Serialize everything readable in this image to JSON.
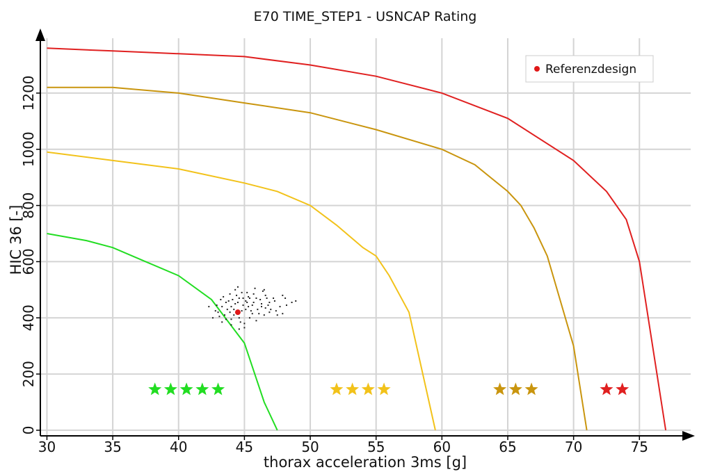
{
  "chart_data": {
    "type": "line",
    "title": "E70 TIME_STEP1 - USNCAP Rating",
    "xlabel": "thorax acceleration 3ms [g]",
    "ylabel": "HIC 36 [-]",
    "xlim": [
      29.5,
      79
    ],
    "ylim": [
      -20,
      1420
    ],
    "xticks": [
      30,
      35,
      40,
      45,
      50,
      55,
      60,
      65,
      70,
      75
    ],
    "yticks": [
      0,
      200,
      400,
      600,
      800,
      1000,
      1200
    ],
    "grid": true,
    "legend_position": "top-right",
    "series": [
      {
        "color": "#22dd22",
        "points": [
          [
            30,
            700
          ],
          [
            33,
            675
          ],
          [
            35,
            650
          ],
          [
            37.5,
            600
          ],
          [
            40,
            550
          ],
          [
            42.5,
            465
          ],
          [
            45,
            310
          ],
          [
            46.5,
            100
          ],
          [
            47.5,
            0
          ]
        ]
      },
      {
        "color": "#f2c21a",
        "points": [
          [
            30,
            990
          ],
          [
            35,
            960
          ],
          [
            40,
            930
          ],
          [
            45,
            880
          ],
          [
            47.5,
            850
          ],
          [
            50,
            800
          ],
          [
            52,
            730
          ],
          [
            54,
            650
          ],
          [
            55,
            620
          ],
          [
            56,
            550
          ],
          [
            57.5,
            420
          ],
          [
            59.5,
            0
          ]
        ]
      },
      {
        "color": "#c9950e",
        "points": [
          [
            30,
            1220
          ],
          [
            35,
            1220
          ],
          [
            40,
            1200
          ],
          [
            45,
            1165
          ],
          [
            50,
            1130
          ],
          [
            55,
            1070
          ],
          [
            60,
            1000
          ],
          [
            62.5,
            945
          ],
          [
            65,
            850
          ],
          [
            66,
            800
          ],
          [
            67,
            720
          ],
          [
            68,
            620
          ],
          [
            70,
            300
          ],
          [
            71,
            0
          ]
        ]
      },
      {
        "color": "#e02020",
        "points": [
          [
            30,
            1360
          ],
          [
            35,
            1350
          ],
          [
            40,
            1340
          ],
          [
            45,
            1330
          ],
          [
            50,
            1300
          ],
          [
            55,
            1260
          ],
          [
            60,
            1200
          ],
          [
            65,
            1110
          ],
          [
            70,
            960
          ],
          [
            72.5,
            850
          ],
          [
            74,
            750
          ],
          [
            75,
            600
          ],
          [
            77,
            0
          ]
        ]
      }
    ],
    "reference_point": {
      "label": "Referenzdesign",
      "x": 44.5,
      "y": 420,
      "color": "#e01818"
    },
    "scatter_points": [
      [
        44.2,
        410
      ],
      [
        44.8,
        425
      ],
      [
        45.3,
        440
      ],
      [
        43.6,
        455
      ],
      [
        44.6,
        470
      ],
      [
        45.6,
        415
      ],
      [
        44.0,
        395
      ],
      [
        45.1,
        460
      ],
      [
        46.0,
        430
      ],
      [
        43.3,
        440
      ],
      [
        44.4,
        480
      ],
      [
        45.4,
        400
      ],
      [
        46.3,
        450
      ],
      [
        43.9,
        420
      ],
      [
        44.9,
        445
      ],
      [
        45.9,
        470
      ],
      [
        43.1,
        405
      ],
      [
        44.7,
        385
      ],
      [
        46.6,
        435
      ],
      [
        45.2,
        490
      ],
      [
        44.1,
        465
      ],
      [
        43.4,
        475
      ],
      [
        45.7,
        455
      ],
      [
        46.9,
        420
      ],
      [
        44.3,
        500
      ],
      [
        45.0,
        380
      ],
      [
        43.7,
        430
      ],
      [
        46.2,
        465
      ],
      [
        45.5,
        425
      ],
      [
        44.5,
        455
      ],
      [
        47.3,
        460
      ],
      [
        47.7,
        440
      ],
      [
        48.1,
        470
      ],
      [
        47.0,
        430
      ],
      [
        46.6,
        480
      ],
      [
        48.6,
        455
      ],
      [
        47.9,
        415
      ],
      [
        46.4,
        495
      ],
      [
        45.8,
        505
      ],
      [
        44.5,
        510
      ],
      [
        43.2,
        465
      ],
      [
        42.9,
        445
      ],
      [
        42.3,
        440
      ],
      [
        43.0,
        420
      ],
      [
        42.6,
        400
      ],
      [
        43.6,
        395
      ],
      [
        44.0,
        375
      ],
      [
        45.0,
        365
      ],
      [
        45.9,
        390
      ],
      [
        46.5,
        410
      ],
      [
        47.4,
        425
      ],
      [
        48.2,
        445
      ],
      [
        46.9,
        455
      ],
      [
        45.3,
        475
      ],
      [
        44.8,
        490
      ],
      [
        44.0,
        440
      ],
      [
        43.5,
        410
      ],
      [
        45.6,
        445
      ],
      [
        46.1,
        415
      ],
      [
        44.6,
        400
      ],
      [
        45.1,
        430
      ],
      [
        44.3,
        450
      ],
      [
        43.8,
        460
      ],
      [
        45.4,
        470
      ],
      [
        46.3,
        440
      ],
      [
        47.2,
        470
      ],
      [
        47.9,
        480
      ],
      [
        46.5,
        500
      ],
      [
        45.2,
        455
      ],
      [
        44.9,
        470
      ],
      [
        44.2,
        430
      ],
      [
        43.9,
        485
      ],
      [
        45.7,
        485
      ],
      [
        46.8,
        445
      ],
      [
        47.5,
        410
      ],
      [
        42.8,
        425
      ],
      [
        43.3,
        385
      ],
      [
        44.6,
        360
      ],
      [
        48.9,
        460
      ],
      [
        46.7,
        470
      ]
    ],
    "rating_stars": [
      {
        "rating": "5 stars",
        "count": 5,
        "color": "#22dd22",
        "x_start": 38.2,
        "x_end": 43.0,
        "y": 145
      },
      {
        "rating": "4 stars",
        "count": 4,
        "color": "#f2c21a",
        "x_start": 52.0,
        "x_end": 55.6,
        "y": 145
      },
      {
        "rating": "3 stars",
        "count": 3,
        "color": "#c9950e",
        "x_start": 64.4,
        "x_end": 66.8,
        "y": 145
      },
      {
        "rating": "2 stars",
        "count": 2,
        "color": "#e02020",
        "x_start": 72.5,
        "x_end": 73.7,
        "y": 145
      }
    ],
    "colors": {
      "grid": "#d4d4d4",
      "axis": "#000000",
      "scatter": "#222222"
    }
  }
}
